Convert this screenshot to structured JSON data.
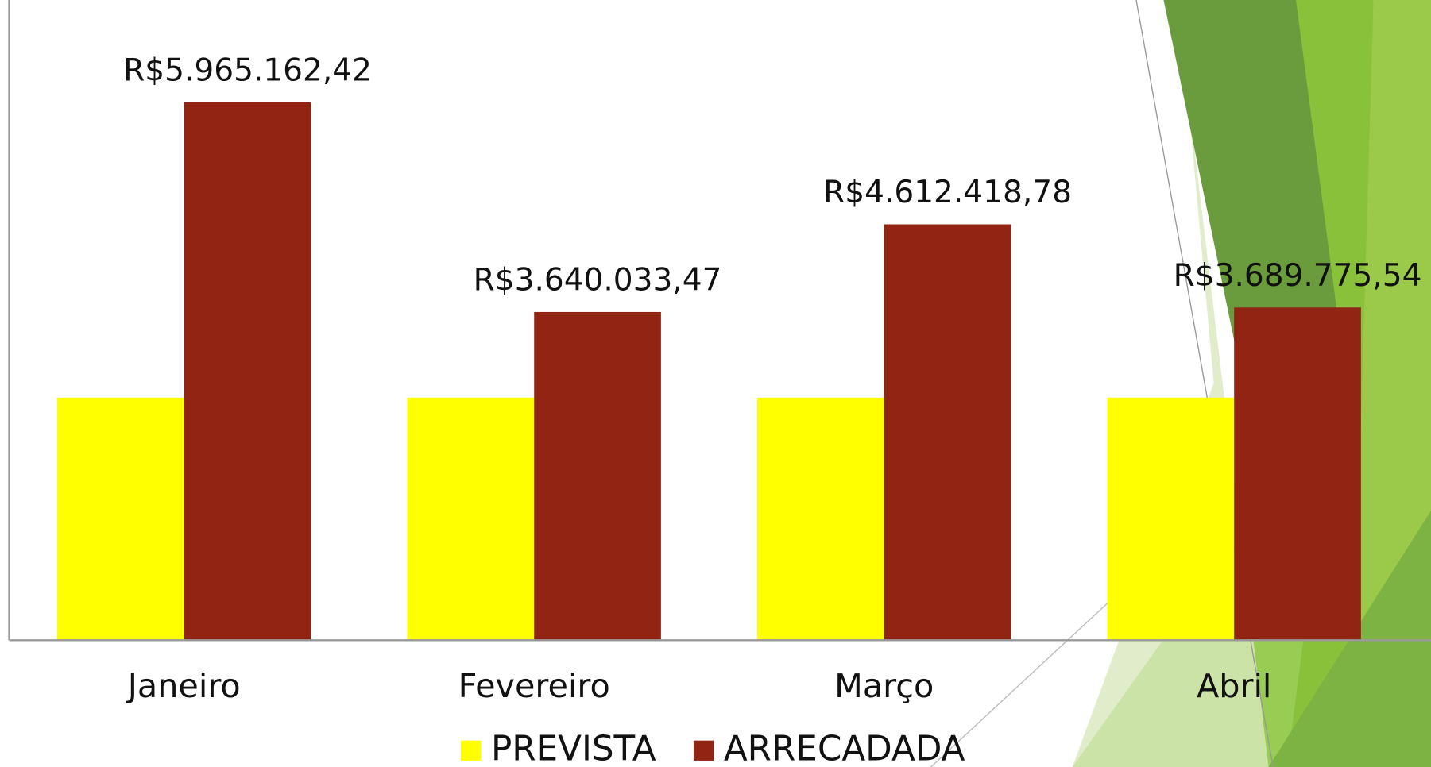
{
  "chart_data": {
    "type": "bar",
    "categories": [
      "Janeiro",
      "Fevereiro",
      "Março",
      "Abril"
    ],
    "series": [
      {
        "name": "PREVISTA",
        "color": "#ffff00",
        "values": [
          2690000,
          2690000,
          2690000,
          2690000
        ]
      },
      {
        "name": "ARRECADADA",
        "color": "#922414",
        "values": [
          5965162.42,
          3640033.47,
          4612418.78,
          3689775.54
        ],
        "value_labels": [
          "R$5.965.162,42",
          "R$3.640.033,47",
          "R$4.612.418,78",
          "R$3.689.775,54"
        ]
      }
    ],
    "ylim": [
      0,
      7100000
    ]
  }
}
